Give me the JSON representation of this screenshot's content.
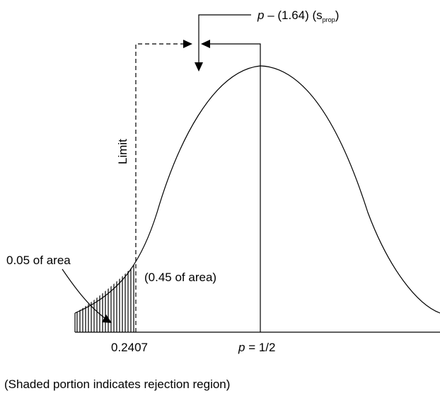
{
  "formula": {
    "p": "p",
    "rest": " – (1.64) (s",
    "sub": "prop",
    "close": ")"
  },
  "limit_label": "Limit",
  "left_tail_label": "0.05 of area",
  "middle_label": "(0.45 of area)",
  "x_labels": {
    "critical_value": "0.2407",
    "mean_var": "p",
    "mean_rest": " = 1/2"
  },
  "caption": "(Shaded portion indicates rejection region)"
}
